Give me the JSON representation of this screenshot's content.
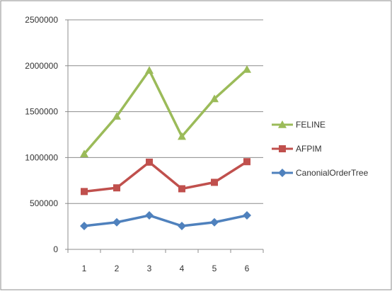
{
  "chart_data": {
    "type": "line",
    "title": "",
    "xlabel": "",
    "ylabel": "",
    "categories": [
      "1",
      "2",
      "3",
      "4",
      "5",
      "6"
    ],
    "ylim": [
      0,
      2500000
    ],
    "yticks": [
      "0",
      "500000",
      "1000000",
      "1500000",
      "2000000",
      "2500000"
    ],
    "grid": true,
    "legend_position": "right",
    "series": [
      {
        "name": "FELINE",
        "color": "#9bbb59",
        "marker": "triangle",
        "values": [
          1040000,
          1450000,
          1950000,
          1230000,
          1640000,
          1960000
        ]
      },
      {
        "name": "AFPIM",
        "color": "#c0504d",
        "marker": "square",
        "values": [
          630000,
          670000,
          950000,
          660000,
          730000,
          955000
        ]
      },
      {
        "name": "CanonialOrderTree",
        "color": "#4f81bd",
        "marker": "diamond",
        "values": [
          255000,
          295000,
          370000,
          255000,
          295000,
          370000
        ]
      }
    ]
  }
}
